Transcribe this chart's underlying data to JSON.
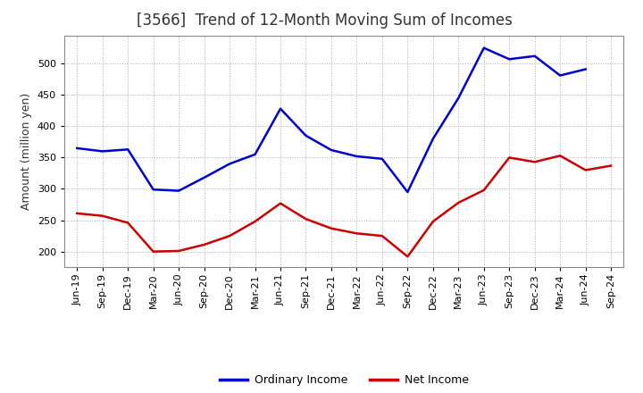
{
  "title": "[3566]  Trend of 12-Month Moving Sum of Incomes",
  "ylabel": "Amount (million yen)",
  "x_labels": [
    "Jun-19",
    "Sep-19",
    "Dec-19",
    "Mar-20",
    "Jun-20",
    "Sep-20",
    "Dec-20",
    "Mar-21",
    "Jun-21",
    "Sep-21",
    "Dec-21",
    "Mar-22",
    "Jun-22",
    "Sep-22",
    "Dec-22",
    "Mar-23",
    "Jun-23",
    "Sep-23",
    "Dec-23",
    "Mar-24",
    "Jun-24",
    "Sep-24"
  ],
  "ordinary_income": [
    365,
    360,
    363,
    299,
    297,
    318,
    340,
    355,
    428,
    385,
    362,
    352,
    348,
    295,
    380,
    445,
    525,
    507,
    512,
    481,
    491,
    null
  ],
  "net_income": [
    261,
    257,
    246,
    200,
    201,
    211,
    225,
    248,
    277,
    252,
    237,
    229,
    225,
    192,
    248,
    278,
    298,
    350,
    343,
    353,
    330,
    337
  ],
  "ordinary_color": "#0000cc",
  "net_color": "#cc0000",
  "ylim_min": 175,
  "ylim_max": 545,
  "yticks": [
    200,
    250,
    300,
    350,
    400,
    450,
    500
  ],
  "bg_color": "#ffffff",
  "plot_bg_color": "#ffffff",
  "grid_color": "#999999",
  "title_color": "#333333",
  "legend_ordinary": "Ordinary Income",
  "legend_net": "Net Income",
  "title_fontsize": 12,
  "ylabel_fontsize": 9,
  "tick_fontsize": 8,
  "legend_fontsize": 9
}
